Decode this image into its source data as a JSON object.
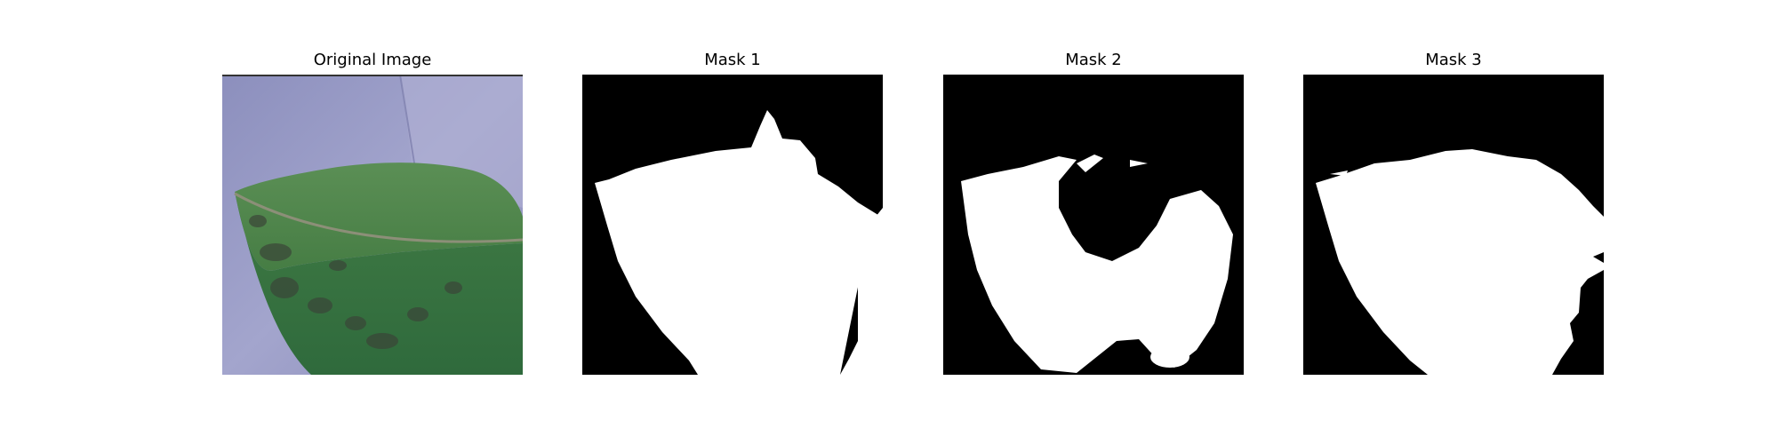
{
  "figure": {
    "panels": [
      {
        "title": "Original Image",
        "content": "leaf photograph"
      },
      {
        "title": "Mask 1",
        "content": "binary segmentation mask"
      },
      {
        "title": "Mask 2",
        "content": "binary segmentation mask"
      },
      {
        "title": "Mask 3",
        "content": "binary segmentation mask"
      }
    ]
  },
  "colors": {
    "background_paper": "#9a9cc4",
    "leaf_green": "#4f8a4a",
    "lesion_dark": "#3e4a3a",
    "mask_fg": "#ffffff",
    "mask_bg": "#000000"
  }
}
